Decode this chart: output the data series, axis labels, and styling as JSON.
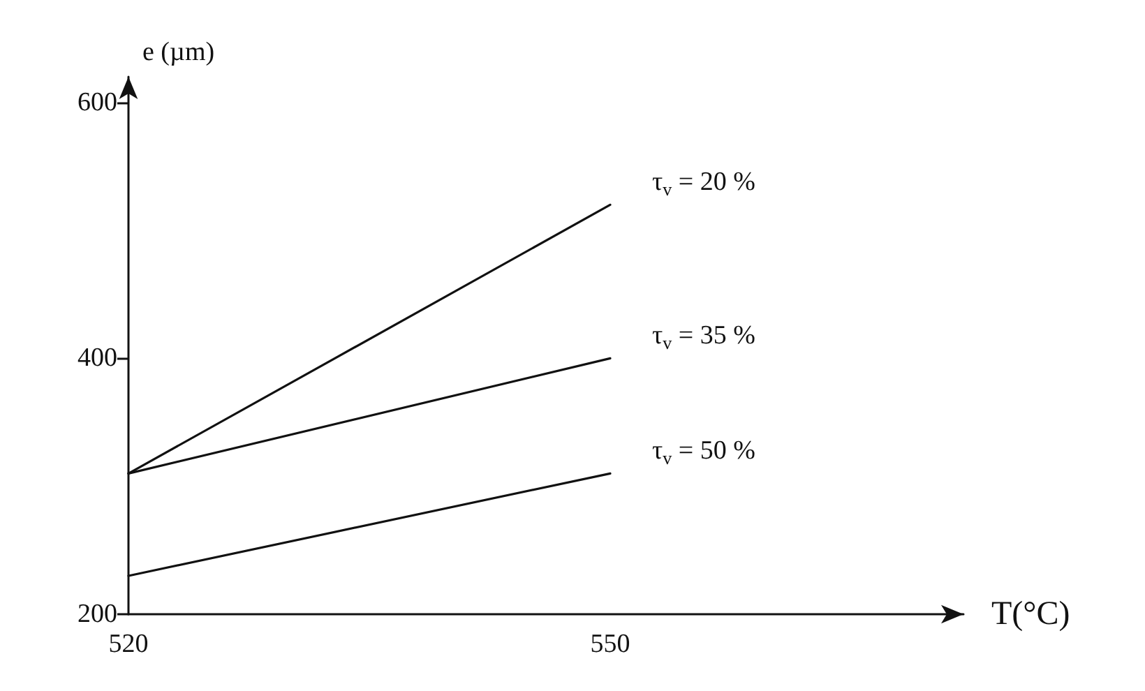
{
  "chart_data": {
    "type": "line",
    "xlabel": "T(°C)",
    "ylabel": "e (µm)",
    "x": [
      520,
      550
    ],
    "series": [
      {
        "name": "τ$_{v}$ = 20 %",
        "color": "#111111",
        "values": [
          310,
          520
        ]
      },
      {
        "name": "τ$_{v}$ = 35 %",
        "color": "#111111",
        "values": [
          310,
          400
        ]
      },
      {
        "name": "τ$_{v}$ = 50 %",
        "color": "#111111",
        "values": [
          230,
          310
        ]
      }
    ],
    "xlim": [
      520,
      572
    ],
    "xticks": [
      520,
      550
    ],
    "ylim": [
      200,
      620
    ],
    "yticks": [
      200,
      400,
      600
    ],
    "grid": false,
    "marker": "none",
    "line_style": "solid"
  }
}
